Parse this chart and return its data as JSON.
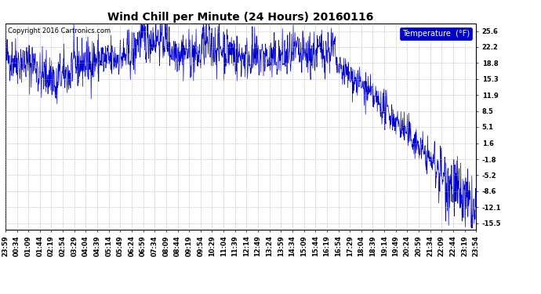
{
  "title": "Wind Chill per Minute (24 Hours) 20160116",
  "copyright": "Copyright 2016 Cartronics.com",
  "legend_label": "Temperature  (°F)",
  "line_color": "#0000cc",
  "background_color": "#ffffff",
  "grid_color": "#aaaaaa",
  "yticks": [
    25.6,
    22.2,
    18.8,
    15.3,
    11.9,
    8.5,
    5.1,
    1.6,
    -1.8,
    -5.2,
    -8.6,
    -12.1,
    -15.5
  ],
  "ylim": [
    -16.8,
    27.2
  ],
  "xtick_labels": [
    "23:59",
    "00:34",
    "01:09",
    "01:44",
    "02:19",
    "02:54",
    "03:29",
    "04:04",
    "04:39",
    "05:14",
    "05:49",
    "06:24",
    "06:59",
    "07:34",
    "08:09",
    "08:44",
    "09:19",
    "09:54",
    "10:29",
    "11:04",
    "11:39",
    "12:14",
    "12:49",
    "13:24",
    "13:59",
    "14:34",
    "15:09",
    "15:44",
    "16:19",
    "16:54",
    "17:29",
    "18:04",
    "18:39",
    "19:14",
    "19:49",
    "20:24",
    "20:59",
    "21:34",
    "22:09",
    "22:44",
    "23:19",
    "23:54"
  ],
  "n_points": 1440,
  "title_fontsize": 10,
  "tick_fontsize": 6,
  "copyright_fontsize": 6,
  "legend_fontsize": 7
}
